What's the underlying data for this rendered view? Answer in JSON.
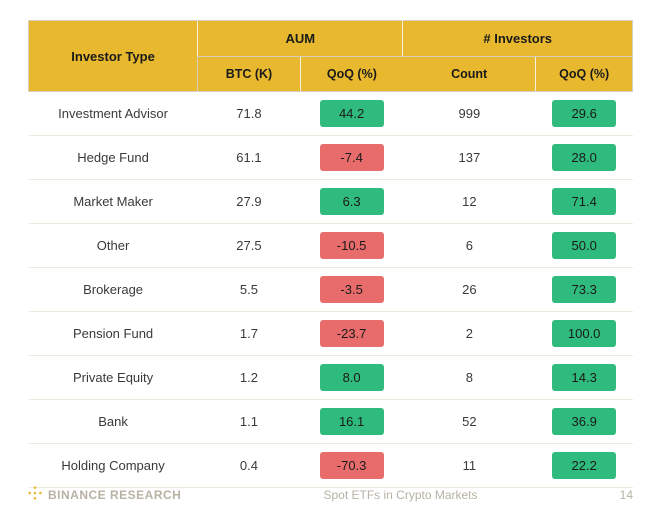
{
  "colors": {
    "header_bg": "#e8b92f",
    "positive": "#2fbb7d",
    "negative": "#e86c6c",
    "row_border": "#eeeae0",
    "text": "#3a3a3a",
    "footer_text": "#b7b2a4",
    "logo": "#e8b92f"
  },
  "table": {
    "type": "table",
    "header_group_investor": "Investor Type",
    "header_group_aum": "AUM",
    "header_group_inv": "# Investors",
    "sub_btc": "BTC (K)",
    "sub_aum_qoq": "QoQ (%)",
    "sub_count": "Count",
    "sub_inv_qoq": "QoQ (%)",
    "rows": [
      {
        "type": "Investment Advisor",
        "btc": "71.8",
        "aum_qoq": "44.2",
        "aum_pos": true,
        "count": "999",
        "inv_qoq": "29.6",
        "inv_pos": true
      },
      {
        "type": "Hedge Fund",
        "btc": "61.1",
        "aum_qoq": "-7.4",
        "aum_pos": false,
        "count": "137",
        "inv_qoq": "28.0",
        "inv_pos": true
      },
      {
        "type": "Market Maker",
        "btc": "27.9",
        "aum_qoq": "6.3",
        "aum_pos": true,
        "count": "12",
        "inv_qoq": "71.4",
        "inv_pos": true
      },
      {
        "type": "Other",
        "btc": "27.5",
        "aum_qoq": "-10.5",
        "aum_pos": false,
        "count": "6",
        "inv_qoq": "50.0",
        "inv_pos": true
      },
      {
        "type": "Brokerage",
        "btc": "5.5",
        "aum_qoq": "-3.5",
        "aum_pos": false,
        "count": "26",
        "inv_qoq": "73.3",
        "inv_pos": true
      },
      {
        "type": "Pension Fund",
        "btc": "1.7",
        "aum_qoq": "-23.7",
        "aum_pos": false,
        "count": "2",
        "inv_qoq": "100.0",
        "inv_pos": true
      },
      {
        "type": "Private Equity",
        "btc": "1.2",
        "aum_qoq": "8.0",
        "aum_pos": true,
        "count": "8",
        "inv_qoq": "14.3",
        "inv_pos": true
      },
      {
        "type": "Bank",
        "btc": "1.1",
        "aum_qoq": "16.1",
        "aum_pos": true,
        "count": "52",
        "inv_qoq": "36.9",
        "inv_pos": true
      },
      {
        "type": "Holding Company",
        "btc": "0.4",
        "aum_qoq": "-70.3",
        "aum_pos": false,
        "count": "11",
        "inv_qoq": "22.2",
        "inv_pos": true
      }
    ]
  },
  "footer": {
    "brand": "BINANCE RESEARCH",
    "caption": "Spot ETFs in Crypto Markets",
    "page": "14"
  }
}
